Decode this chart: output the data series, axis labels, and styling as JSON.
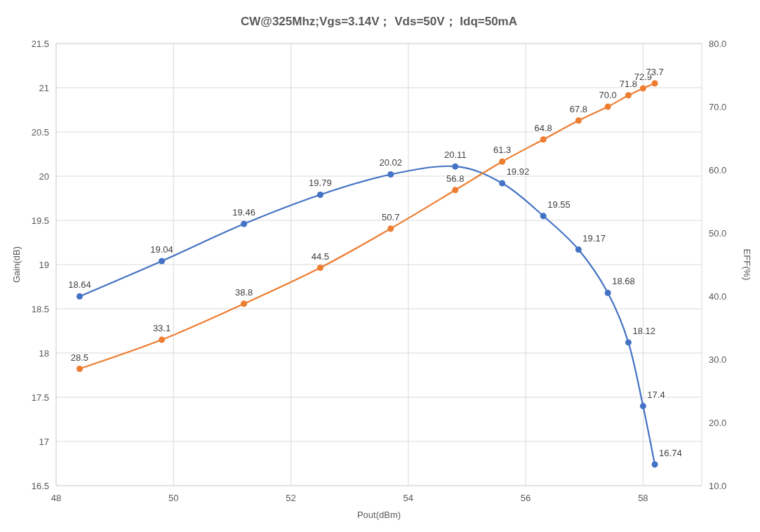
{
  "chart_data": {
    "type": "line",
    "title": "CW@325Mhz;Vgs=3.14V； Vds=50V； Idq=50mA",
    "xlabel": "Pout(dBm)",
    "ylabel": "Gain(dB)",
    "y2label": "EFF(%)",
    "x": [
      48.4,
      49.8,
      51.2,
      52.5,
      53.7,
      54.8,
      55.6,
      56.3,
      56.9,
      57.4,
      57.75,
      58.0,
      58.2
    ],
    "series": [
      {
        "color": "#4472c4",
        "values": [
          18.64,
          19.04,
          19.46,
          19.79,
          20.02,
          20.11,
          19.92,
          19.55,
          19.17,
          18.68,
          18.12,
          17.4,
          16.74
        ],
        "value_labels": [
          "18.64",
          "19.04",
          "19.46",
          "19.79",
          "20.02",
          "20.11",
          "19.92",
          "19.55",
          "19.17",
          "18.68",
          "18.12",
          "17.4",
          "16.74"
        ]
      },
      {
        "color": "#ed7d31",
        "axis": "y2",
        "values": [
          28.5,
          33.1,
          38.8,
          44.5,
          50.7,
          56.8,
          61.3,
          64.8,
          67.8,
          70.0,
          71.8,
          72.9,
          73.7
        ],
        "value_labels": [
          "28.5",
          "33.1",
          "38.8",
          "44.5",
          "50.7",
          "56.8",
          "61.3",
          "64.8",
          "67.8",
          "70.0",
          "71.8",
          "72.9",
          "73.7"
        ]
      }
    ],
    "xlim": [
      48,
      59
    ],
    "xticks": [
      48,
      50,
      52,
      54,
      56,
      58
    ],
    "ylim": [
      16.5,
      21.5
    ],
    "yticks": [
      16.5,
      17,
      17.5,
      18,
      18.5,
      19,
      19.5,
      20,
      20.5,
      21,
      21.5
    ],
    "y2lim": [
      10,
      80
    ],
    "y2ticks": [
      {
        "value": 10,
        "label": "10.0"
      },
      {
        "value": 20,
        "label": "20.0"
      },
      {
        "value": 30,
        "label": "30.0"
      },
      {
        "value": 40,
        "label": "40.0"
      },
      {
        "value": 50,
        "label": "50.0"
      },
      {
        "value": 60,
        "label": "60.0"
      },
      {
        "value": 70,
        "label": "70.0"
      },
      {
        "value": 80,
        "label": "80.0"
      }
    ],
    "grid": true,
    "marker": "circle",
    "line_style": "solid"
  }
}
